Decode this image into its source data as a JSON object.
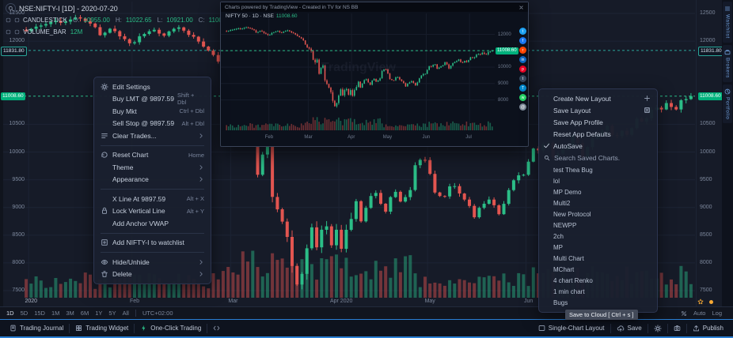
{
  "header": {
    "symbol": "NSE:NIFTY-I [1D] - 2020-07-20",
    "series": "CANDLESTICK",
    "ohlc": [
      {
        "label": "O:",
        "value": "10955.00"
      },
      {
        "label": "H:",
        "value": "11022.65"
      },
      {
        "label": "L:",
        "value": "10921.00"
      },
      {
        "label": "C:",
        "value": "11008.60"
      }
    ],
    "volume_label": "VOLUME_BAR",
    "volume_period": "12M"
  },
  "chart_data": {
    "type": "candlestick",
    "symbol": "NSE:NIFTY-I",
    "interval": "1D",
    "date": "2020-07-20",
    "last_ohlc": {
      "open": 10955.0,
      "high": 11022.65,
      "low": 10921.0,
      "close": 11008.6
    },
    "ylim": [
      7400,
      12600
    ],
    "y_ticks": [
      12500,
      12000,
      10500,
      10000,
      9500,
      9000,
      8500,
      8000,
      7500
    ],
    "x_labels": [
      {
        "label": "2020",
        "i": 1
      },
      {
        "label": "Feb",
        "i": 22
      },
      {
        "label": "Mar",
        "i": 42
      },
      {
        "label": "Apr 2020",
        "i": 64
      },
      {
        "label": "May",
        "i": 82
      },
      {
        "label": "Jun",
        "i": 102
      }
    ],
    "price_lines": [
      {
        "value": 11831.8,
        "label": "11831.80",
        "color": "#2aa79a",
        "style": "boxed"
      },
      {
        "value": 11008.6,
        "label": "11008.60",
        "color": "#2bbd87",
        "style": "filled"
      }
    ],
    "closes": [
      12180,
      12222,
      12262,
      12282,
      12308,
      12343,
      12363,
      12330,
      12352,
      12390,
      12430,
      12408,
      12362,
      12318,
      12252,
      12106,
      12152,
      12224,
      12180,
      12088,
      12035,
      11962,
      11980,
      12088,
      12130,
      12178,
      12206,
      12138,
      12098,
      12175,
      12222,
      12248,
      12190,
      12113,
      12080,
      11993,
      11902,
      11829,
      11750,
      11633,
      11380,
      11201,
      11133,
      10989,
      10451,
      10290,
      10458,
      9590,
      9955,
      10102,
      9190,
      8967,
      8745,
      8469,
      7945,
      7610,
      7801,
      8263,
      8641,
      8281,
      8598,
      8660,
      8318,
      8598,
      8254,
      8597,
      8792,
      9112,
      8749,
      8993,
      9206,
      9262,
      9067,
      8925,
      9187,
      9282,
      9107,
      9187,
      9314,
      9762,
      9859,
      9854,
      9606,
      9270,
      9206,
      9199,
      9380,
      9384,
      9251,
      9143,
      9028,
      8823,
      8993,
      9067,
      9142,
      9039,
      8879,
      9066,
      9314,
      9490,
      9580,
      9590,
      9826,
      10062,
      10029,
      10142,
      10167,
      9902,
      9973,
      10046,
      10116,
      10305,
      10167,
      9914,
      10091,
      10244,
      10312,
      10383,
      10471,
      10305,
      10289,
      10383,
      10312,
      10430,
      10600,
      10552,
      10607,
      10763,
      10799,
      10768,
      10883,
      10813,
      10768,
      10935,
      10955,
      11008.6
    ]
  },
  "context_menu": {
    "items": [
      {
        "icon": "gear",
        "label": "Edit Settings"
      },
      {
        "label": "Buy LMT @ 9897.59",
        "shortcut": "Shift + Dbl"
      },
      {
        "label": "Buy Mkt",
        "shortcut": "Ctrl + Dbl"
      },
      {
        "label": "Sell Stop @ 9897.59",
        "shortcut": "Alt + Dbl"
      },
      {
        "icon": "clear",
        "label": "Clear Trades...",
        "submenu": true
      },
      {
        "divider": true
      },
      {
        "icon": "reset",
        "label": "Reset Chart",
        "shortcut": "Home"
      },
      {
        "label": "Theme",
        "submenu": true
      },
      {
        "label": "Appearance",
        "submenu": true
      },
      {
        "divider": true
      },
      {
        "label": "X Line At 9897.59",
        "shortcut": "Alt + X"
      },
      {
        "icon": "lock",
        "label": "Lock Vertical Line",
        "shortcut": "Alt + Y"
      },
      {
        "label": "Add Anchor VWAP"
      },
      {
        "divider": true
      },
      {
        "icon": "watchlist",
        "label": "Add NIFTY-I to watchlist"
      },
      {
        "divider": true
      },
      {
        "icon": "eye",
        "label": "Hide/Unhide",
        "submenu": true
      },
      {
        "icon": "trash",
        "label": "Delete",
        "submenu": true
      }
    ]
  },
  "layout_menu": {
    "actions": [
      {
        "label": "Create New Layout",
        "right_icon": "plus"
      },
      {
        "label": "Save Layout",
        "right_icon": "save"
      },
      {
        "label": "Save App Profile"
      },
      {
        "label": "Reset App Defaults"
      },
      {
        "label": "AutoSave",
        "left_icon": "check"
      }
    ],
    "search_placeholder": "Search Saved Charts.",
    "saved_charts": [
      "test Thea Bug",
      "lol",
      "MP Demo",
      "Multi2",
      "New Protocol",
      "NEWPP",
      "2ch",
      "MP",
      "Multi Chart",
      "MChart",
      "4 chart Renko",
      "1 min chart",
      "Bugs"
    ]
  },
  "mini_window": {
    "title": "Charts powered by TradingView - Created in TV for NS BB",
    "legend_symbol": "NIFTY 50 · 1D · NSE",
    "legend_value": "11008.60",
    "watermark": "TradingView",
    "tag": "11008.60",
    "y_ticks": [
      12000,
      11000,
      10000,
      9000,
      8000
    ],
    "x_labels": [
      {
        "label": "Feb",
        "i": 22
      },
      {
        "label": "Mar",
        "i": 42
      },
      {
        "label": "Apr",
        "i": 64
      },
      {
        "label": "May",
        "i": 82
      },
      {
        "label": "Jun",
        "i": 102
      },
      {
        "label": "Jul",
        "i": 124
      }
    ],
    "share_icons": [
      {
        "name": "twitter",
        "color": "#1da1f2",
        "glyph": "t"
      },
      {
        "name": "facebook",
        "color": "#1877f2",
        "glyph": "f"
      },
      {
        "name": "reddit",
        "color": "#ff4500",
        "glyph": "r"
      },
      {
        "name": "linkedin",
        "color": "#0a66c2",
        "glyph": "in"
      },
      {
        "name": "pinterest",
        "color": "#e60023",
        "glyph": "p"
      },
      {
        "name": "tumblr",
        "color": "#35465c",
        "glyph": "t"
      },
      {
        "name": "telegram",
        "color": "#0088cc",
        "glyph": "T"
      },
      {
        "name": "whatsapp",
        "color": "#25d366",
        "glyph": "w"
      },
      {
        "name": "email",
        "color": "#7f8c9b",
        "glyph": "@"
      }
    ]
  },
  "side_tabs": [
    {
      "label": "Watchlist",
      "icon": "list"
    },
    {
      "label": "Brokers",
      "icon": "briefcase"
    },
    {
      "label": "Portfolio",
      "icon": "pie"
    }
  ],
  "timeframe_bar": {
    "ranges": [
      "1D",
      "5D",
      "15D",
      "1M",
      "3M",
      "6M",
      "1Y",
      "5Y",
      "All"
    ],
    "active_range": "1D",
    "timezone": "UTC+02:00",
    "scale_toggles": [
      "Auto",
      "Log"
    ]
  },
  "tooltip": {
    "text": "Save to Cloud [ Ctrl + s ]"
  },
  "status_bar": {
    "left": [
      {
        "icon": "journal",
        "label": "Trading Journal"
      },
      {
        "icon": "widget",
        "label": "Trading Widget"
      },
      {
        "icon": "bolt",
        "label": "One-Click Trading",
        "green": true
      },
      {
        "icon": "code",
        "label": ""
      }
    ],
    "right": [
      {
        "icon": "layout",
        "label": "Single-Chart Layout"
      },
      {
        "icon": "cloud",
        "label": "Save"
      },
      {
        "icon": "gear",
        "label": ""
      },
      {
        "icon": "camera",
        "label": ""
      },
      {
        "icon": "publish",
        "label": "Publish"
      }
    ]
  }
}
